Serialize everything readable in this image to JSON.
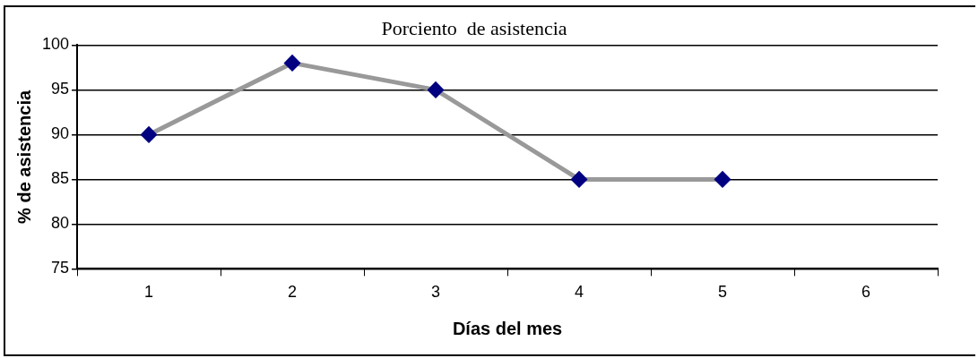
{
  "chart_data": {
    "type": "line",
    "title": "Porciento  de asistencia",
    "xlabel": "Días del mes",
    "ylabel": "% de asistencia",
    "categories": [
      "1",
      "2",
      "3",
      "4",
      "5",
      "6"
    ],
    "series": [
      {
        "color": "#999999",
        "values": [
          90,
          98,
          95,
          85,
          85,
          null
        ]
      }
    ],
    "ylim": [
      75,
      100
    ],
    "yticks": [
      75,
      80,
      85,
      90,
      95,
      100
    ],
    "grid": "y",
    "legend": false,
    "marker": "diamond",
    "line_style": "solid"
  }
}
